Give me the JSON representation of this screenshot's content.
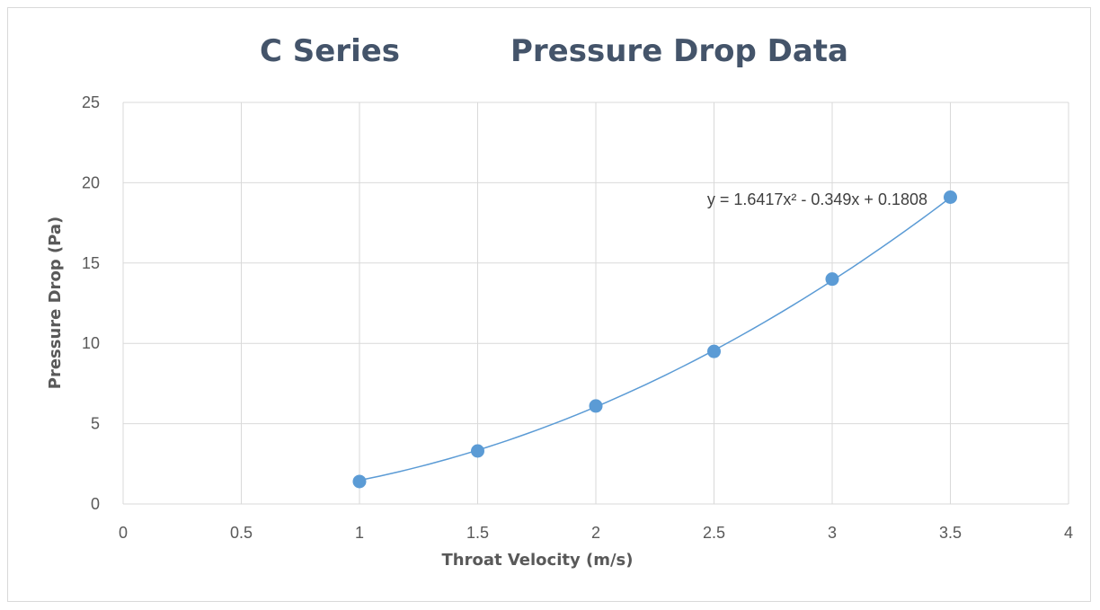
{
  "chart_data": {
    "type": "scatter",
    "title_left": "C Series",
    "title_right": "Pressure Drop Data",
    "xlabel": "Throat Velocity (m/s)",
    "ylabel": "Pressure Drop (Pa)",
    "xlim": [
      0,
      4
    ],
    "ylim": [
      0,
      25
    ],
    "x_ticks": [
      "0",
      "0.5",
      "1",
      "1.5",
      "2",
      "2.5",
      "3",
      "3.5",
      "4"
    ],
    "y_ticks": [
      "0",
      "5",
      "10",
      "15",
      "20",
      "25"
    ],
    "x_tick_values": [
      0,
      0.5,
      1,
      1.5,
      2,
      2.5,
      3,
      3.5,
      4
    ],
    "y_tick_values": [
      0,
      5,
      10,
      15,
      20,
      25
    ],
    "grid": true,
    "series": [
      {
        "x": [
          1,
          1.5,
          2,
          2.5,
          3,
          3.5
        ],
        "y": [
          1.4,
          3.3,
          6.1,
          9.5,
          14.0,
          19.1
        ]
      }
    ],
    "trendline": {
      "type": "polynomial",
      "coefficients": [
        1.6417,
        -0.349,
        0.1808
      ],
      "x_range": [
        1,
        3.5
      ],
      "equation": "y = 1.6417x² - 0.349x + 0.1808"
    },
    "colors": {
      "marker": "#5b9bd5",
      "trendline": "#5b9bd5",
      "grid": "#d9d9d9",
      "title": "#44546a",
      "text": "#595959"
    }
  }
}
